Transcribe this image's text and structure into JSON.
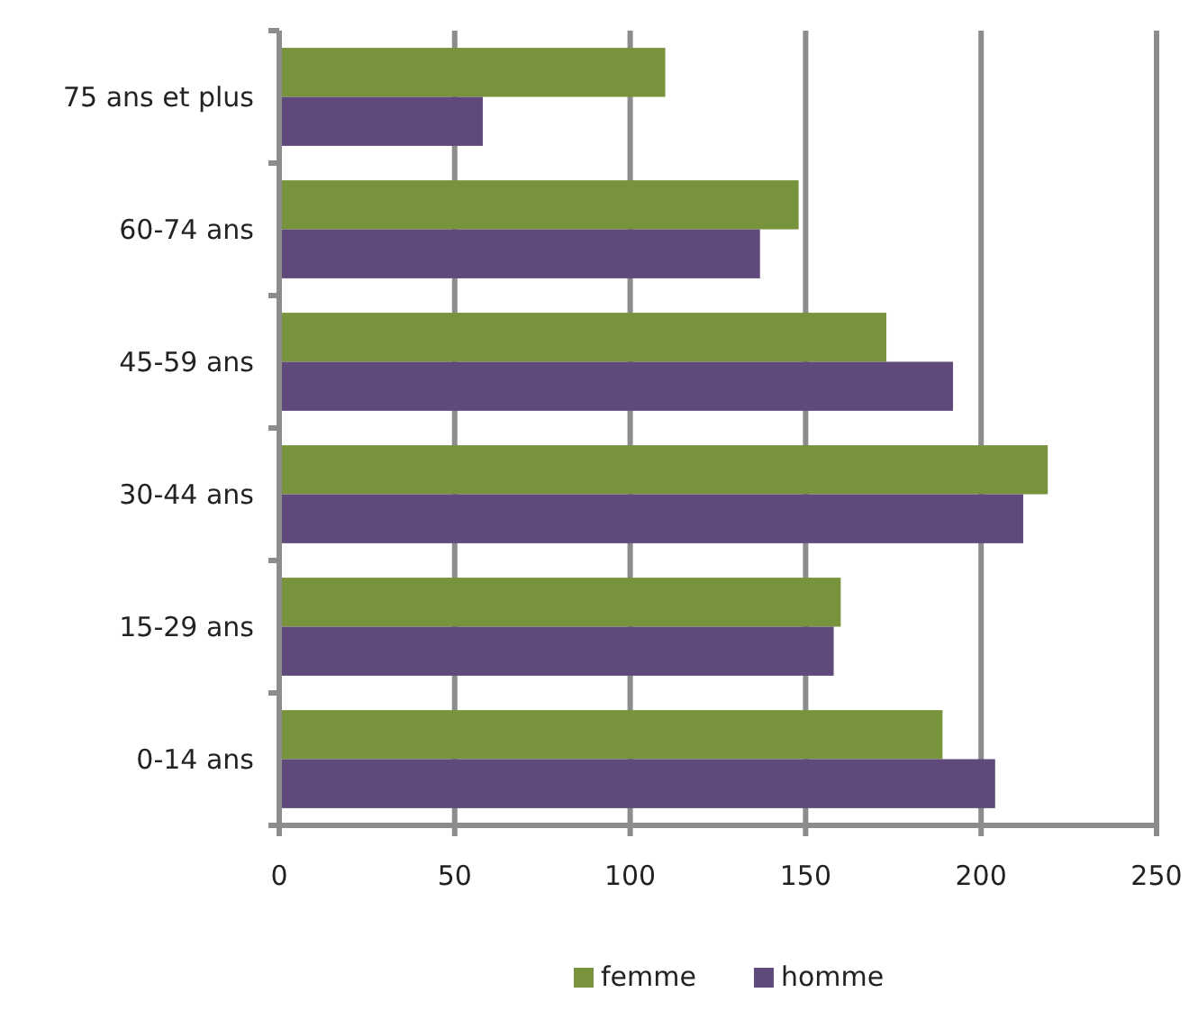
{
  "chart_data": {
    "type": "bar",
    "orientation": "horizontal",
    "categories": [
      "75 ans et plus",
      "60-74 ans",
      "45-59 ans",
      "30-44 ans",
      "15-29 ans",
      "0-14 ans"
    ],
    "series": [
      {
        "name": "femme",
        "color": "#77933c",
        "values": [
          110,
          148,
          173,
          219,
          160,
          189
        ]
      },
      {
        "name": "homme",
        "color": "#604a7b",
        "values": [
          58,
          137,
          192,
          212,
          158,
          204
        ]
      }
    ],
    "xlim": [
      0,
      250
    ],
    "xticks": [
      0,
      50,
      100,
      150,
      200,
      250
    ],
    "grid": "x",
    "legend": "bottom"
  }
}
